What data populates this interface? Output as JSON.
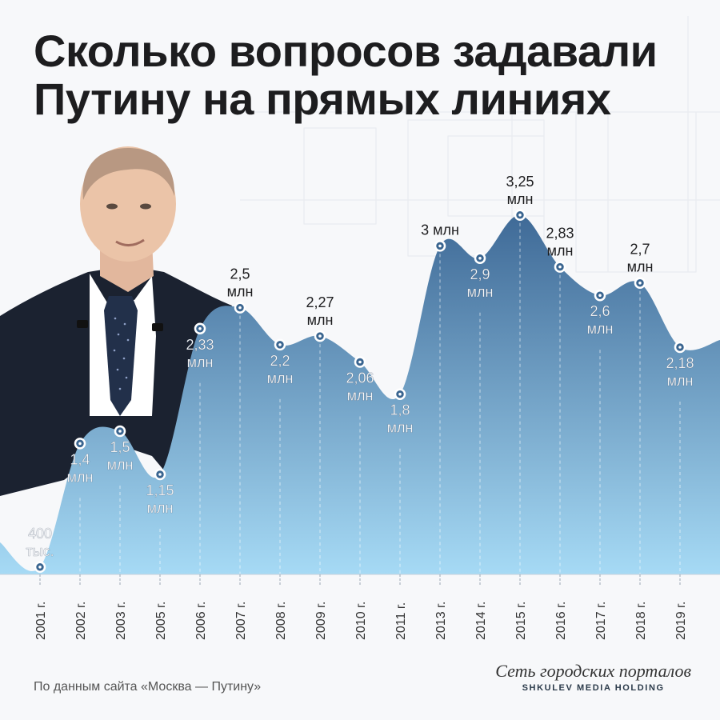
{
  "title_lines": [
    "Сколько вопросов задавали",
    "Путину на прямых линиях"
  ],
  "source": "По данным сайта «Москва — Путину»",
  "brand": {
    "script": "Сеть городских порталов",
    "sub": "SHKULEV MEDIA HOLDING"
  },
  "colors": {
    "area_top": "#3f6a97",
    "area_bottom": "#a6daf5",
    "suit": "#1b2230",
    "label_text": "#ffffff",
    "label_text_dark": "#1d1d1f"
  },
  "chart_data": {
    "type": "area",
    "title": "Сколько вопросов задавали Путину на прямых линиях",
    "categories": [
      "2001 г.",
      "2002 г.",
      "2003 г.",
      "2005 г.",
      "2006 г.",
      "2007 г.",
      "2008 г.",
      "2009 г.",
      "2010 г.",
      "2011 г.",
      "2013 г.",
      "2014 г.",
      "2015 г.",
      "2016 г.",
      "2017 г.",
      "2018 г.",
      "2019 г."
    ],
    "values": [
      0.4,
      1.4,
      1.5,
      1.15,
      2.33,
      2.5,
      2.2,
      2.27,
      2.06,
      1.8,
      3.0,
      2.9,
      3.25,
      2.83,
      2.6,
      2.7,
      2.18
    ],
    "unit": "млн",
    "labels": [
      [
        "400",
        "тыс."
      ],
      [
        "1,4",
        "млн"
      ],
      [
        "1,5",
        "млн"
      ],
      [
        "1,15",
        "млн"
      ],
      [
        "2,33",
        "млн"
      ],
      [
        "2,5",
        "млн"
      ],
      [
        "2,2",
        "млн"
      ],
      [
        "2,27",
        "млн"
      ],
      [
        "2,06",
        "млн"
      ],
      [
        "1,8",
        "млн"
      ],
      [
        "3 млн"
      ],
      [
        "2,9",
        "млн"
      ],
      [
        "3,25",
        "млн"
      ],
      [
        "2,83",
        "млн"
      ],
      [
        "2,6",
        "млн"
      ],
      [
        "2,7",
        "млн"
      ],
      [
        "2,18",
        "млн"
      ]
    ],
    "label_position": [
      "above",
      "below",
      "below",
      "below",
      "below",
      "above",
      "below",
      "above",
      "below",
      "below",
      "above",
      "below",
      "above",
      "above",
      "below",
      "above",
      "below"
    ],
    "legend": "none",
    "grid": false
  }
}
